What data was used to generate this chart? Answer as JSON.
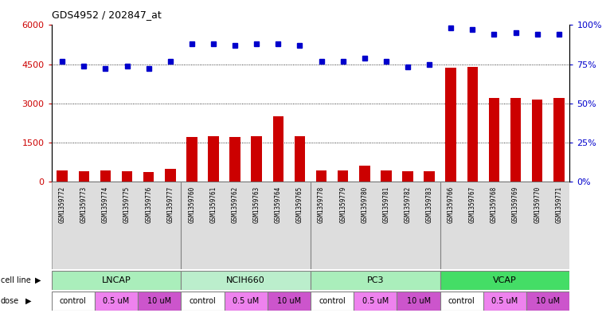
{
  "title": "GDS4952 / 202847_at",
  "samples": [
    "GSM1359772",
    "GSM1359773",
    "GSM1359774",
    "GSM1359775",
    "GSM1359776",
    "GSM1359777",
    "GSM1359760",
    "GSM1359761",
    "GSM1359762",
    "GSM1359763",
    "GSM1359764",
    "GSM1359765",
    "GSM1359778",
    "GSM1359779",
    "GSM1359780",
    "GSM1359781",
    "GSM1359782",
    "GSM1359783",
    "GSM1359766",
    "GSM1359767",
    "GSM1359768",
    "GSM1359769",
    "GSM1359770",
    "GSM1359771"
  ],
  "counts": [
    430,
    380,
    420,
    380,
    370,
    500,
    1700,
    1750,
    1700,
    1750,
    2500,
    1750,
    430,
    430,
    600,
    430,
    400,
    380,
    4350,
    4400,
    3200,
    3200,
    3150,
    3200
  ],
  "percentiles": [
    77,
    74,
    72,
    74,
    72,
    77,
    88,
    88,
    87,
    88,
    88,
    87,
    77,
    77,
    79,
    77,
    73,
    75,
    98,
    97,
    94,
    95,
    94,
    94
  ],
  "cell_lines": [
    {
      "name": "LNCAP",
      "start": 0,
      "end": 6,
      "color": "#AAEEBB"
    },
    {
      "name": "NCIH660",
      "start": 6,
      "end": 12,
      "color": "#BBEECC"
    },
    {
      "name": "PC3",
      "start": 12,
      "end": 18,
      "color": "#AAEEBB"
    },
    {
      "name": "VCAP",
      "start": 18,
      "end": 24,
      "color": "#44DD66"
    }
  ],
  "dose_groups": [
    {
      "label": "control",
      "start": 0,
      "end": 2,
      "color": "#FFFFFF"
    },
    {
      "label": "0.5 uM",
      "start": 2,
      "end": 4,
      "color": "#EE82EE"
    },
    {
      "label": "10 uM",
      "start": 4,
      "end": 6,
      "color": "#CC55CC"
    },
    {
      "label": "control",
      "start": 6,
      "end": 8,
      "color": "#FFFFFF"
    },
    {
      "label": "0.5 uM",
      "start": 8,
      "end": 10,
      "color": "#EE82EE"
    },
    {
      "label": "10 uM",
      "start": 10,
      "end": 12,
      "color": "#CC55CC"
    },
    {
      "label": "control",
      "start": 12,
      "end": 14,
      "color": "#FFFFFF"
    },
    {
      "label": "0.5 uM",
      "start": 14,
      "end": 16,
      "color": "#EE82EE"
    },
    {
      "label": "10 uM",
      "start": 16,
      "end": 18,
      "color": "#CC55CC"
    },
    {
      "label": "control",
      "start": 18,
      "end": 20,
      "color": "#FFFFFF"
    },
    {
      "label": "0.5 uM",
      "start": 20,
      "end": 22,
      "color": "#EE82EE"
    },
    {
      "label": "10 uM",
      "start": 22,
      "end": 24,
      "color": "#CC55CC"
    }
  ],
  "bar_color": "#CC0000",
  "dot_color": "#0000CC",
  "ylim_left": [
    0,
    6000
  ],
  "ylim_right": [
    0,
    100
  ],
  "yticks_left": [
    0,
    1500,
    3000,
    4500,
    6000
  ],
  "ytick_labels_left": [
    "0",
    "1500",
    "3000",
    "4500",
    "6000"
  ],
  "yticks_right": [
    0,
    25,
    50,
    75,
    100
  ],
  "ytick_labels_right": [
    "0%",
    "25%",
    "50%",
    "75%",
    "100%"
  ],
  "grid_values": [
    1500,
    3000,
    4500
  ],
  "background_color": "#FFFFFF"
}
